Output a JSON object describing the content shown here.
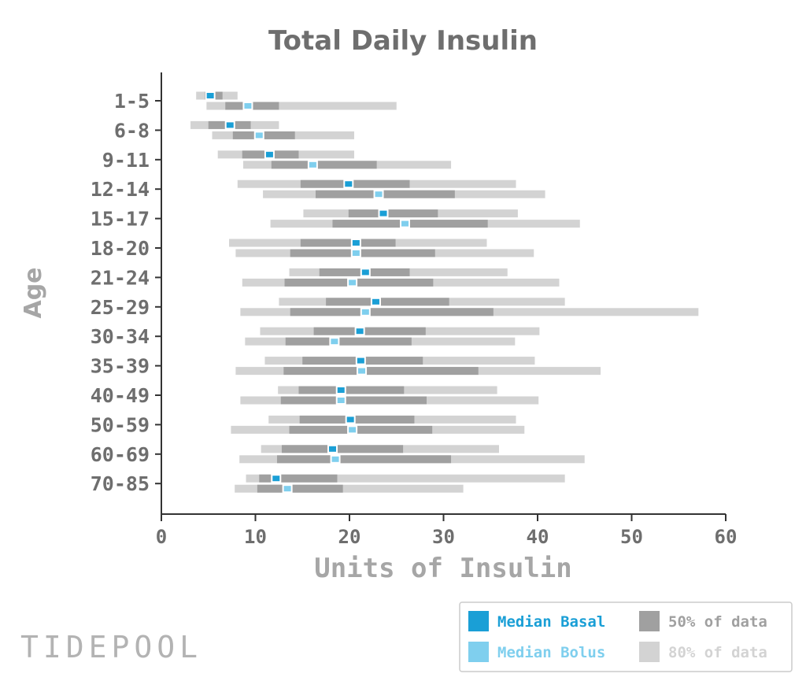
{
  "chart_data": {
    "type": "range-bar",
    "title": "Total Daily Insulin",
    "xlabel": "Units of Insulin",
    "ylabel": "Age",
    "xlim": [
      0,
      60
    ],
    "xticks": [
      "0",
      "10",
      "20",
      "30",
      "40",
      "50",
      "60"
    ],
    "legend_position": "bottom-right",
    "colors": {
      "median_basal": "#1a9fd6",
      "median_bolus": "#7fcfee",
      "p50": "#a0a0a0",
      "p80": "#d3d3d3"
    },
    "legend": [
      {
        "key": "median_basal",
        "label": "Median Basal"
      },
      {
        "key": "p50",
        "label": "50% of data"
      },
      {
        "key": "median_bolus",
        "label": "Median Bolus"
      },
      {
        "key": "p80",
        "label": "80% of data"
      }
    ],
    "groups": [
      {
        "age": "1-5",
        "basal": {
          "p80": [
            3.7,
            8.1
          ],
          "p50": [
            4.6,
            6.5
          ],
          "median": 5.2
        },
        "bolus": {
          "p80": [
            4.8,
            25.0
          ],
          "p50": [
            6.8,
            12.5
          ],
          "median": 9.2
        }
      },
      {
        "age": "6-8",
        "basal": {
          "p80": [
            3.1,
            12.5
          ],
          "p50": [
            5.0,
            9.5
          ],
          "median": 7.3
        },
        "bolus": {
          "p80": [
            5.4,
            20.5
          ],
          "p50": [
            7.6,
            14.2
          ],
          "median": 10.4
        }
      },
      {
        "age": "9-11",
        "basal": {
          "p80": [
            6.0,
            20.5
          ],
          "p50": [
            8.6,
            14.6
          ],
          "median": 11.5
        },
        "bolus": {
          "p80": [
            8.7,
            30.8
          ],
          "p50": [
            11.7,
            22.9
          ],
          "median": 16.1
        }
      },
      {
        "age": "12-14",
        "basal": {
          "p80": [
            8.1,
            37.7
          ],
          "p50": [
            14.8,
            26.4
          ],
          "median": 19.9
        },
        "bolus": {
          "p80": [
            10.8,
            40.8
          ],
          "p50": [
            16.4,
            31.2
          ],
          "median": 23.1
        }
      },
      {
        "age": "15-17",
        "basal": {
          "p80": [
            15.1,
            37.9
          ],
          "p50": [
            19.9,
            29.4
          ],
          "median": 23.6
        },
        "bolus": {
          "p80": [
            11.6,
            44.5
          ],
          "p50": [
            18.2,
            34.7
          ],
          "median": 25.9
        }
      },
      {
        "age": "18-20",
        "basal": {
          "p80": [
            7.2,
            34.6
          ],
          "p50": [
            14.8,
            24.9
          ],
          "median": 20.7
        },
        "bolus": {
          "p80": [
            7.9,
            39.6
          ],
          "p50": [
            13.7,
            29.1
          ],
          "median": 20.7
        }
      },
      {
        "age": "21-24",
        "basal": {
          "p80": [
            13.6,
            36.8
          ],
          "p50": [
            16.8,
            26.4
          ],
          "median": 21.7
        },
        "bolus": {
          "p80": [
            8.6,
            42.3
          ],
          "p50": [
            13.1,
            28.9
          ],
          "median": 20.3
        }
      },
      {
        "age": "25-29",
        "basal": {
          "p80": [
            12.5,
            42.9
          ],
          "p50": [
            17.5,
            30.6
          ],
          "median": 22.8
        },
        "bolus": {
          "p80": [
            8.4,
            57.1
          ],
          "p50": [
            13.7,
            35.3
          ],
          "median": 21.7
        }
      },
      {
        "age": "30-34",
        "basal": {
          "p80": [
            10.5,
            40.2
          ],
          "p50": [
            16.2,
            28.1
          ],
          "median": 21.1
        },
        "bolus": {
          "p80": [
            8.9,
            37.6
          ],
          "p50": [
            13.2,
            26.6
          ],
          "median": 18.4
        }
      },
      {
        "age": "35-39",
        "basal": {
          "p80": [
            11.0,
            39.7
          ],
          "p50": [
            15.0,
            27.8
          ],
          "median": 21.2
        },
        "bolus": {
          "p80": [
            7.9,
            46.7
          ],
          "p50": [
            13.0,
            33.7
          ],
          "median": 21.3
        }
      },
      {
        "age": "40-49",
        "basal": {
          "p80": [
            12.4,
            35.7
          ],
          "p50": [
            14.6,
            25.8
          ],
          "median": 19.1
        },
        "bolus": {
          "p80": [
            8.4,
            40.1
          ],
          "p50": [
            12.7,
            28.2
          ],
          "median": 19.1
        }
      },
      {
        "age": "50-59",
        "basal": {
          "p80": [
            11.4,
            37.7
          ],
          "p50": [
            14.7,
            26.9
          ],
          "median": 20.1
        },
        "bolus": {
          "p80": [
            7.4,
            38.6
          ],
          "p50": [
            13.6,
            28.8
          ],
          "median": 20.3
        }
      },
      {
        "age": "60-69",
        "basal": {
          "p80": [
            10.6,
            35.9
          ],
          "p50": [
            12.8,
            25.7
          ],
          "median": 18.2
        },
        "bolus": {
          "p80": [
            8.3,
            45.0
          ],
          "p50": [
            12.3,
            30.8
          ],
          "median": 18.5
        }
      },
      {
        "age": "70-85",
        "basal": {
          "p80": [
            9.0,
            42.9
          ],
          "p50": [
            10.4,
            18.7
          ],
          "median": 12.2
        },
        "bolus": {
          "p80": [
            7.8,
            32.1
          ],
          "p50": [
            10.2,
            19.3
          ],
          "median": 13.4
        }
      }
    ]
  },
  "branding": {
    "logo_text": "TIDEPOOL"
  }
}
